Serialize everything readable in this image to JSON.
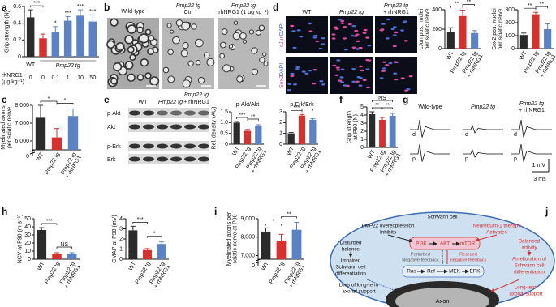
{
  "chart_data": [
    {
      "type": "bar",
      "ylabel": [
        "Grip strength (N)"
      ],
      "categories": [
        "0",
        "0",
        "0.1",
        "1",
        "10",
        "50"
      ],
      "values": [
        0.47,
        0.22,
        0.29,
        0.43,
        0.49,
        0.42
      ],
      "errors": [
        0.09,
        0.05,
        0.07,
        0.05,
        0.07,
        0.08
      ],
      "colors": [
        "#2b2b2b",
        "#d7312e",
        "#5a82c4",
        "#5a82c4",
        "#5a82c4",
        "#5a82c4"
      ],
      "ylim": [
        0,
        0.6
      ],
      "yticks": [
        0,
        0.2,
        0.4,
        0.6
      ],
      "pair_sig": [
        "***",
        null,
        null,
        null,
        null
      ],
      "bar_sig": [
        null,
        null,
        "*",
        "***",
        "***",
        "***"
      ],
      "group_labels": [
        "WT",
        "Pmp22 tg"
      ],
      "x_row_label": [
        "rhNRG1",
        "(μg kg⁻¹)"
      ]
    },
    {
      "type": "bar",
      "ylabel": [
        "Myelinated axons",
        "per sciatic nerve"
      ],
      "categories": [
        [
          "WT"
        ],
        [
          "Pmp22 tg"
        ],
        [
          "Pmp22 tg",
          "+ rhNRG1"
        ]
      ],
      "values": [
        7300,
        6200,
        7400
      ],
      "errors": [
        700,
        500,
        400
      ],
      "colors": [
        "#2b2b2b",
        "#d7312e",
        "#5a82c4"
      ],
      "ylim": [
        5500,
        8000
      ],
      "yticks": [
        {
          "value": 6000,
          "label": "6,000"
        },
        {
          "value": 7000,
          "label": "7,000"
        },
        {
          "value": 8000,
          "label": "8,000"
        }
      ],
      "pair_sig": [
        "*",
        "*"
      ],
      "axis_break_label": "0"
    },
    {
      "type": "bar",
      "ylabel": [
        "cJun pos. nuclei",
        "per sciatic nerve"
      ],
      "categories": [
        [
          "WT"
        ],
        [
          "Pmp22 tg"
        ],
        [
          "Pmp22 tg",
          "+ rhNRG1"
        ]
      ],
      "values": [
        175,
        335,
        160
      ],
      "errors": [
        40,
        60,
        25
      ],
      "colors": [
        "#2b2b2b",
        "#d7312e",
        "#5a82c4"
      ],
      "ylim": [
        0,
        400
      ],
      "yticks": [
        0,
        200,
        400
      ],
      "pair_sig": [
        "**",
        "**"
      ]
    },
    {
      "type": "bar",
      "ylabel": [
        "Sox2 pos. nuclei",
        "per sciatic nerve"
      ],
      "categories": [
        [
          "WT"
        ],
        [
          "Pmp22 tg"
        ],
        [
          "Pmp22 tg",
          "+ rhNRG1"
        ]
      ],
      "values": [
        105,
        265,
        150
      ],
      "errors": [
        15,
        15,
        40
      ],
      "colors": [
        "#2b2b2b",
        "#d7312e",
        "#5a82c4"
      ],
      "ylim": [
        0,
        300
      ],
      "yticks": [
        0,
        100,
        200,
        300
      ],
      "pair_sig": [
        "**",
        "**"
      ]
    },
    {
      "type": "bar",
      "title": "p-Akt/Akt",
      "ylabel": [
        "Rel. density (AU)"
      ],
      "categories": [
        [
          "WT"
        ],
        [
          "Pmp22 tg"
        ],
        [
          "Pmp22 tg",
          "+ rhNRG1"
        ]
      ],
      "values": [
        1.0,
        0.62,
        0.85
      ],
      "errors": [
        0.05,
        0.06,
        0.05
      ],
      "colors": [
        "#2b2b2b",
        "#d7312e",
        "#5a82c4"
      ],
      "ylim": [
        0,
        1.5
      ],
      "yticks": [
        0,
        0.5,
        {
          "value": 1,
          "label": "1.0"
        },
        1.5
      ],
      "pair_sig": [
        "***",
        "**"
      ]
    },
    {
      "type": "bar",
      "title": "p-Erk/Erk",
      "categories": [
        [
          "WT"
        ],
        [
          "Pmp22 tg"
        ],
        [
          "Pmp22 tg",
          "+ rhNRG1"
        ]
      ],
      "values": [
        1.0,
        2.65,
        2.25
      ],
      "errors": [
        0.08,
        0.1,
        0.1
      ],
      "colors": [
        "#2b2b2b",
        "#d7312e",
        "#5a82c4"
      ],
      "ylim": [
        0,
        3
      ],
      "yticks": [
        0,
        1,
        2,
        3
      ],
      "pair_sig": [
        "***",
        "*"
      ]
    },
    {
      "type": "bar",
      "ylabel": [
        "Grip strength",
        "at P90 (N)"
      ],
      "categories": [
        [
          "WT"
        ],
        [
          "Pmp22 tg"
        ],
        [
          "Pmp22 tg",
          "+ rhNRG1"
        ]
      ],
      "values": [
        4.1,
        3.4,
        3.9
      ],
      "errors": [
        0.3,
        0.3,
        0.3
      ],
      "colors": [
        "#2b2b2b",
        "#d7312e",
        "#5a82c4"
      ],
      "ylim": [
        0,
        5
      ],
      "yticks": [
        0,
        1,
        2,
        3,
        4,
        5
      ],
      "pair_sig": [
        "**",
        "**"
      ],
      "span_sig": "NS"
    },
    {
      "type": "bar",
      "ylabel": [
        "NCV at P90 (m s⁻¹)"
      ],
      "categories": [
        [
          "WT"
        ],
        [
          "Pmp22 tg"
        ],
        [
          "Pmp22 tg",
          "+ rhNRG1"
        ]
      ],
      "values": [
        36,
        7,
        7
      ],
      "errors": [
        3,
        1,
        1
      ],
      "colors": [
        "#2b2b2b",
        "#d7312e",
        "#5a82c4"
      ],
      "ylim": [
        0,
        50
      ],
      "yticks": [
        0,
        10,
        20,
        30,
        40,
        50
      ],
      "pair_sig": [
        "***",
        "NS"
      ]
    },
    {
      "type": "bar",
      "ylabel": [
        "CMAP at P90 (mV)"
      ],
      "categories": [
        [
          "WT"
        ],
        [
          "Pmp22 tg"
        ],
        [
          "Pmp22 tg",
          "+ rhNRG1"
        ]
      ],
      "values": [
        2.85,
        0.9,
        1.5
      ],
      "errors": [
        0.4,
        0.15,
        0.2
      ],
      "colors": [
        "#2b2b2b",
        "#d7312e",
        "#5a82c4"
      ],
      "ylim": [
        0,
        4
      ],
      "yticks": [
        0,
        1,
        2,
        3,
        4
      ],
      "pair_sig": [
        "***",
        "*"
      ]
    },
    {
      "type": "bar",
      "ylabel": [
        "Myelinated axons per",
        "sciatic nerve at P90"
      ],
      "categories": [
        [
          "WT"
        ],
        [
          "Pmp22 tg"
        ],
        [
          "Pmp22 tg",
          "+ rhNRG1"
        ]
      ],
      "values": [
        8300,
        7800,
        8400
      ],
      "errors": [
        200,
        350,
        400
      ],
      "colors": [
        "#2b2b2b",
        "#d7312e",
        "#5a82c4"
      ],
      "ylim": [
        6800,
        9000
      ],
      "yticks": [
        {
          "value": 7000,
          "label": "7,000"
        },
        {
          "value": 8000,
          "label": "8,000"
        },
        {
          "value": 9000,
          "label": "9,000"
        }
      ],
      "pair_sig": [
        "*",
        "**"
      ],
      "axis_break_label": "0"
    }
  ],
  "panel_letters": [
    "a",
    "b",
    "c",
    "d",
    "e",
    "f",
    "g",
    "h",
    "i",
    "j"
  ],
  "micrographs": {
    "labels": [
      [
        "Wild-type"
      ],
      [
        "Pmp22 tg",
        "Ctrl"
      ],
      [
        "Pmp22 tg",
        "rhNRG1 (1 μg kg⁻¹)"
      ]
    ]
  },
  "immunostaining": {
    "column_header": "Pmp22 tg",
    "column_labels": [
      "WT",
      "Pmp22 tg",
      "+ rhNRG1"
    ],
    "row_labels": [
      [
        "cJun",
        "DAPI"
      ],
      [
        "Sox2",
        "DAPI"
      ]
    ]
  },
  "western_blot": {
    "column_header": "Pmp22 tg",
    "column_labels": [
      "WT",
      "Pmp22 tg",
      "+ rhNRG1"
    ],
    "row_labels": [
      "p-Akt",
      "Akt",
      "p-Erk",
      "Erk"
    ]
  },
  "recordings": {
    "column_labels": [
      [
        "Wild-type"
      ],
      [
        "Pmp22 tg"
      ],
      [
        "Pmp22 tg",
        "+ rhNRG1"
      ]
    ],
    "row_labels": [
      "d",
      "p"
    ],
    "scale_bar": [
      "1 mV",
      "3 ms"
    ]
  },
  "diagram": {
    "cell": "Schwann cell",
    "pmp22": [
      "PMP22 overexpression",
      "Inhibits"
    ],
    "nrg1": [
      "Neuregulin-1 therapy",
      "Activates"
    ],
    "pi3k_pathway": [
      "PI3K",
      "AKT",
      "mTOR"
    ],
    "erk_pathway": [
      "Ras",
      "Raf",
      "MEK",
      "ERK"
    ],
    "disturbed": [
      "Disturbed",
      "balance"
    ],
    "perturbed": [
      "Perturbed",
      "Negative feedback"
    ],
    "rescued": [
      "Rescued",
      "negative feedback"
    ],
    "balanced": [
      "Balanced",
      "activity"
    ],
    "impaired": [
      "Impaired",
      "Schwann cell",
      "differentiation"
    ],
    "amelioration": [
      "Amelioration of",
      "Schwann cell",
      "differentiation"
    ],
    "loss": [
      "Loss of long-term",
      "axonal support"
    ],
    "support": [
      "Long-term",
      "axonal support"
    ],
    "axon": "Axon"
  }
}
